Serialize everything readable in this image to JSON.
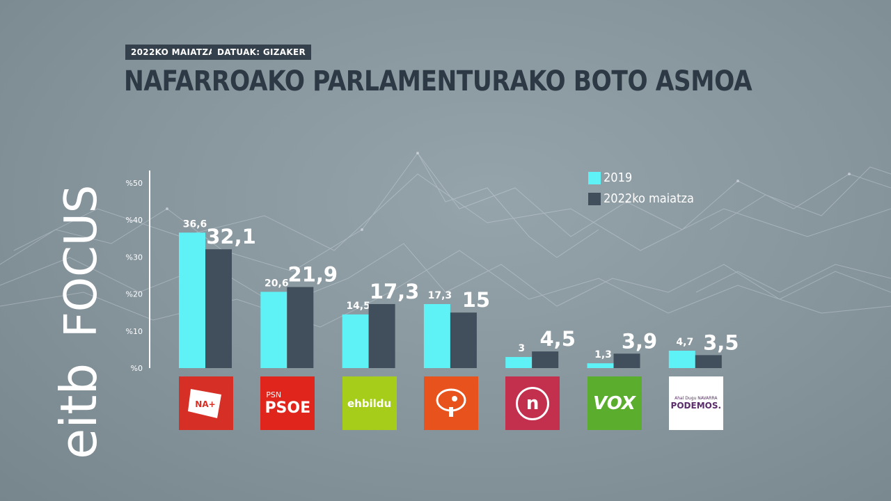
{
  "header": {
    "date_tag": "2022KO MAIATZA",
    "source_tag": "DATUAK: GIZAKER",
    "title": "NAFARROAKO PARLAMENTURAKO BOTO ASMOA"
  },
  "brand": {
    "text_eitb": "eitb",
    "text_focus": "FOCUS",
    "color": "#ffffff"
  },
  "colors": {
    "series_2019": "#5ef2f6",
    "series_2022": "#414e5b",
    "title": "#2d3a46",
    "axis": "#ffffff"
  },
  "parties": [
    {
      "logo_text": "NA+",
      "bg": "#d62f26",
      "icon": "navarra-suma-logo"
    },
    {
      "logo_small": "PSN",
      "logo_text": "PSOE",
      "bg": "#e0261c",
      "icon": "psn-psoe-logo"
    },
    {
      "logo_text": "ehbildu",
      "bg": "#a5cd1a",
      "icon": "ehbildu-logo"
    },
    {
      "logo_text": "",
      "bg": "#e8521c",
      "icon": "geroa-bai-tree-logo"
    },
    {
      "logo_text": "n",
      "bg": "#c2304e",
      "icon": "nafarroa-logo"
    },
    {
      "logo_text": "VOX",
      "bg": "#5aad2d",
      "icon": "vox-logo"
    },
    {
      "logo_small": "Ahal Dugu NAVARRA",
      "logo_text": "PODEMOS.",
      "bg": "#ffffff",
      "icon": "podemos-logo"
    }
  ],
  "chart_data": {
    "type": "bar",
    "title": "NAFARROAKO PARLAMENTURAKO BOTO ASMOA",
    "categories": [
      "",
      "",
      "",
      "",
      "",
      "",
      ""
    ],
    "series": [
      {
        "name": "2019",
        "values": [
          36.6,
          20.6,
          14.5,
          17.3,
          3,
          1.3,
          4.7
        ],
        "labels": [
          "36,6",
          "20,6",
          "14,5",
          "17,3",
          "3",
          "1,3",
          "4,7"
        ]
      },
      {
        "name": "2022ko maiatza",
        "values": [
          32.1,
          21.9,
          17.3,
          15,
          4.5,
          3.9,
          3.5
        ],
        "labels": [
          "32,1",
          "21,9",
          "17,3",
          "15",
          "4,5",
          "3,9",
          "3,5"
        ]
      }
    ],
    "ylim": [
      0,
      50
    ],
    "yticks": [
      0,
      10,
      20,
      30,
      40,
      50
    ],
    "ytick_labels": [
      "%0",
      "%10",
      "%20",
      "%30",
      "%40",
      "%50"
    ],
    "legend_position": "top-right",
    "grid": false
  }
}
